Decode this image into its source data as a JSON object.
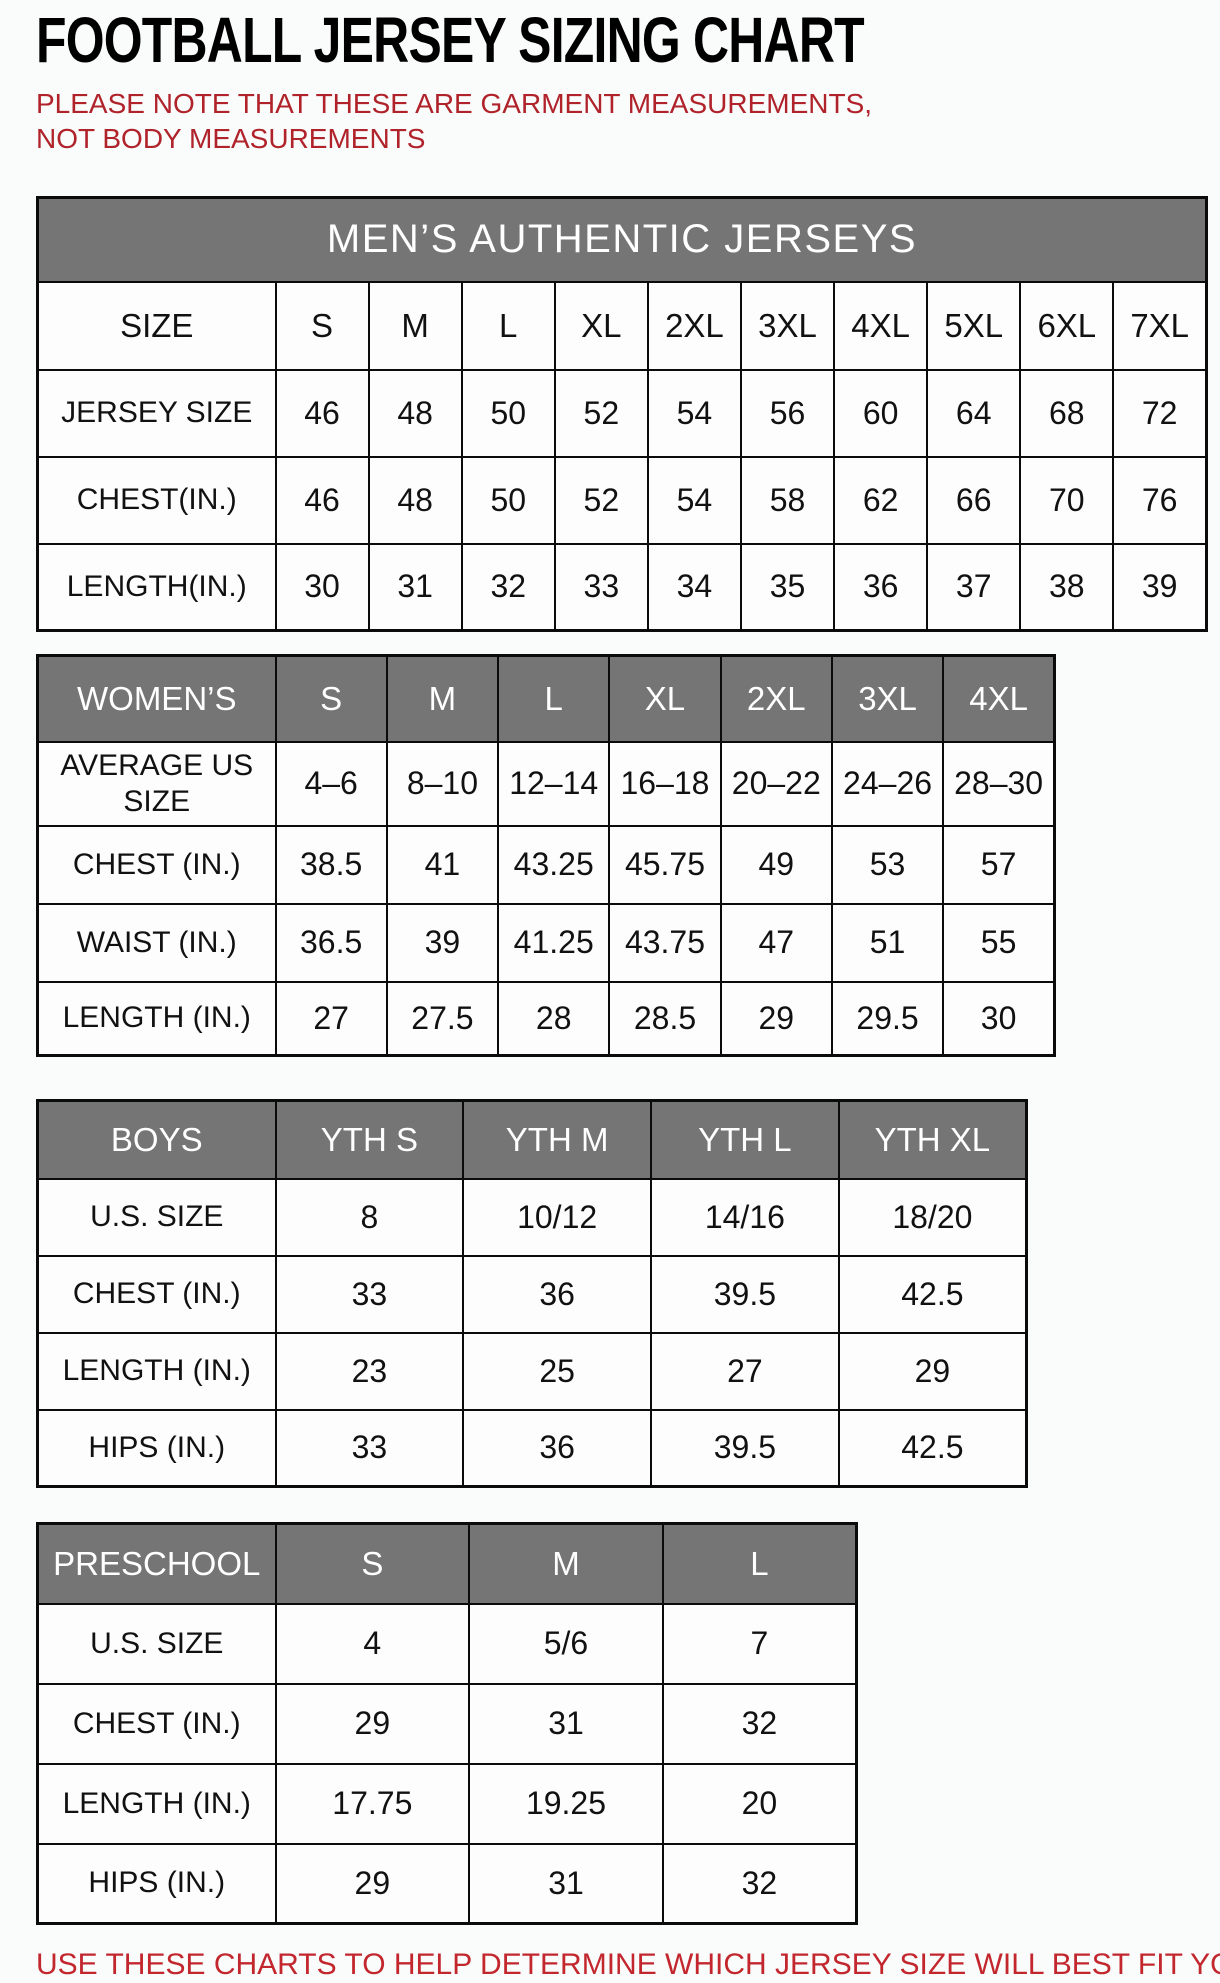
{
  "page": {
    "title": "FOOTBALL JERSEY SIZING CHART",
    "note": "PLEASE NOTE THAT THESE ARE GARMENT MEASUREMENTS, NOT BODY MEASUREMENTS",
    "footer": "USE THESE CHARTS TO HELP DETERMINE WHICH JERSEY SIZE WILL BEST FIT YOU."
  },
  "colors": {
    "header_gray": "#757575",
    "note_red": "#b0232b",
    "footer_red": "#c3272e",
    "border_black": "#0b0b0b"
  },
  "tables": [
    {
      "name": "mens",
      "banner": "MEN’S AUTHENTIC JERSEYS",
      "header_row": [
        "SIZE",
        "S",
        "M",
        "L",
        "XL",
        "2XL",
        "3XL",
        "4XL",
        "5XL",
        "6XL",
        "7XL"
      ],
      "rows": [
        {
          "label": "JERSEY SIZE",
          "values": [
            "46",
            "48",
            "50",
            "52",
            "54",
            "56",
            "60",
            "64",
            "68",
            "72"
          ]
        },
        {
          "label": "CHEST(IN.)",
          "values": [
            "46",
            "48",
            "50",
            "52",
            "54",
            "58",
            "62",
            "66",
            "70",
            "76"
          ]
        },
        {
          "label": "LENGTH(IN.)",
          "values": [
            "30",
            "31",
            "32",
            "33",
            "34",
            "35",
            "36",
            "37",
            "38",
            "39"
          ]
        }
      ]
    },
    {
      "name": "womens",
      "header_row": [
        "WOMEN’S",
        "S",
        "M",
        "L",
        "XL",
        "2XL",
        "3XL",
        "4XL"
      ],
      "rows": [
        {
          "label": "AVERAGE US SIZE",
          "values": [
            "4–6",
            "8–10",
            "12–14",
            "16–18",
            "20–22",
            "24–26",
            "28–30"
          ]
        },
        {
          "label": "CHEST (IN.)",
          "values": [
            "38.5",
            "41",
            "43.25",
            "45.75",
            "49",
            "53",
            "57"
          ]
        },
        {
          "label": "WAIST (IN.)",
          "values": [
            "36.5",
            "39",
            "41.25",
            "43.75",
            "47",
            "51",
            "55"
          ]
        },
        {
          "label": "LENGTH (IN.)",
          "values": [
            "27",
            "27.5",
            "28",
            "28.5",
            "29",
            "29.5",
            "30"
          ]
        }
      ]
    },
    {
      "name": "boys",
      "header_row": [
        "BOYS",
        "YTH S",
        "YTH M",
        "YTH L",
        "YTH XL"
      ],
      "rows": [
        {
          "label": "U.S. SIZE",
          "values": [
            "8",
            "10/12",
            "14/16",
            "18/20"
          ]
        },
        {
          "label": "CHEST (IN.)",
          "values": [
            "33",
            "36",
            "39.5",
            "42.5"
          ]
        },
        {
          "label": "LENGTH (IN.)",
          "values": [
            "23",
            "25",
            "27",
            "29"
          ]
        },
        {
          "label": "HIPS (IN.)",
          "values": [
            "33",
            "36",
            "39.5",
            "42.5"
          ]
        }
      ]
    },
    {
      "name": "preschool",
      "header_row": [
        "PRESCHOOL",
        "S",
        "M",
        "L"
      ],
      "rows": [
        {
          "label": "U.S. SIZE",
          "values": [
            "4",
            "5/6",
            "7"
          ]
        },
        {
          "label": "CHEST (IN.)",
          "values": [
            "29",
            "31",
            "32"
          ]
        },
        {
          "label": "LENGTH (IN.)",
          "values": [
            "17.75",
            "19.25",
            "20"
          ]
        },
        {
          "label": "HIPS (IN.)",
          "values": [
            "29",
            "31",
            "32"
          ]
        }
      ]
    }
  ]
}
